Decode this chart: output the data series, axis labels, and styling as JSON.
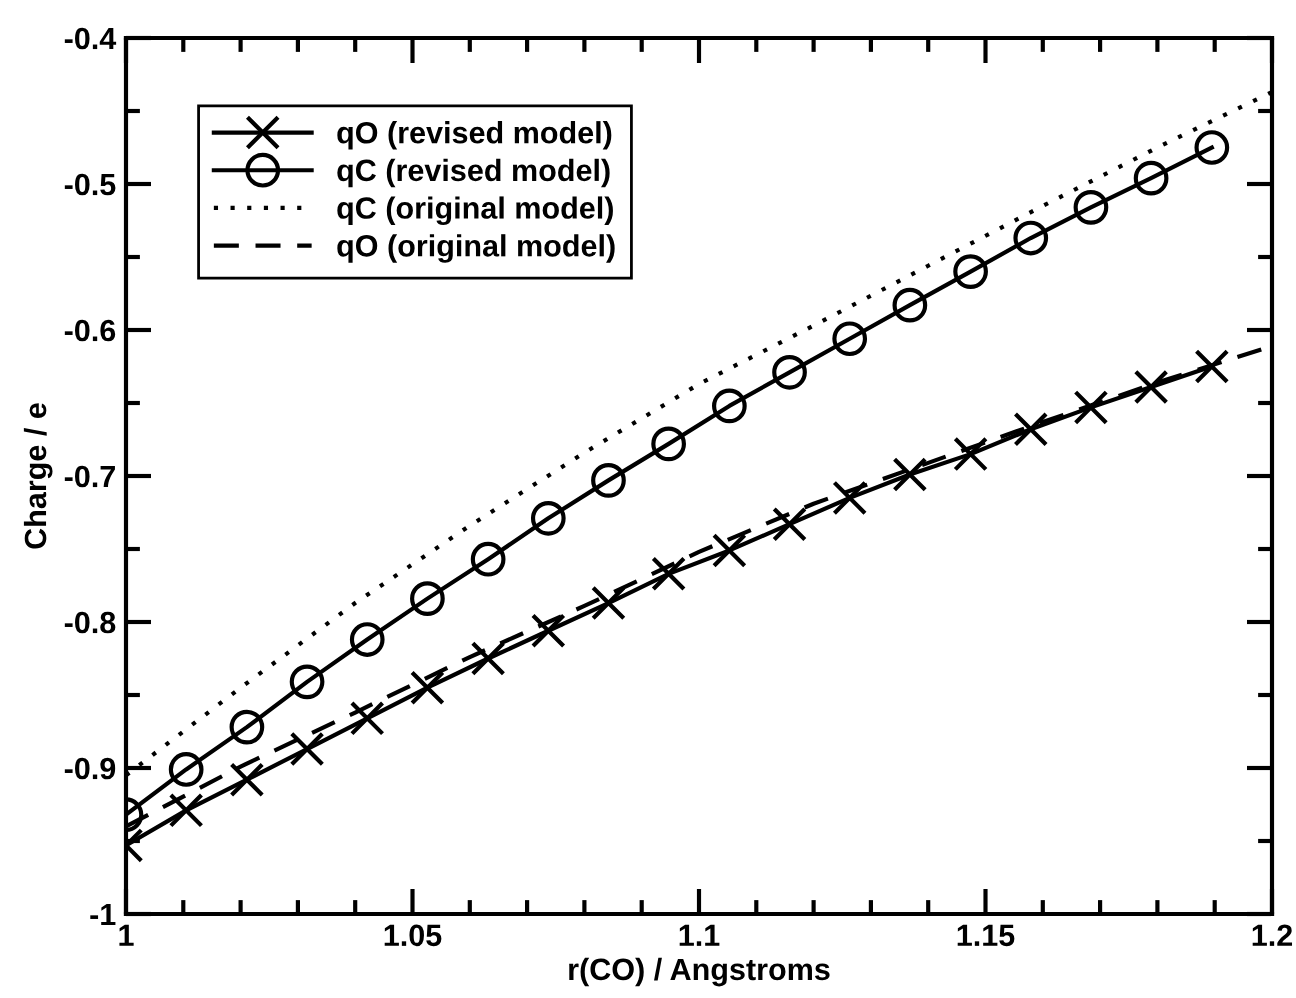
{
  "chart_data": {
    "type": "line",
    "xlabel": "r(CO) / Angstroms",
    "ylabel": "Charge / e",
    "xlim": [
      1,
      1.2
    ],
    "xticks": [
      1,
      1.05,
      1.1,
      1.15,
      1.2
    ],
    "ylim": [
      -1,
      -0.4
    ],
    "yticks": [
      -1,
      -0.9,
      -0.8,
      -0.7,
      -0.6,
      -0.5,
      -0.4
    ],
    "grid": false,
    "legend": "top left",
    "series": [
      {
        "name": "qO (revised model)",
        "color": "#000000",
        "marker": "cross",
        "line_style": "solid",
        "x": [
          1,
          1.0105,
          1.0211,
          1.0316,
          1.0421,
          1.0526,
          1.0632,
          1.0737,
          1.0842,
          1.0947,
          1.1053,
          1.1158,
          1.1263,
          1.1368,
          1.1474,
          1.1579,
          1.1684,
          1.1789,
          1.1895
        ],
        "values": [
          -0.953,
          -0.929,
          -0.908,
          -0.887,
          -0.866,
          -0.845,
          -0.825,
          -0.806,
          -0.787,
          -0.767,
          -0.751,
          -0.733,
          -0.715,
          -0.699,
          -0.685,
          -0.668,
          -0.653,
          -0.639,
          -0.625
        ]
      },
      {
        "name": "qC (revised model)",
        "color": "#000000",
        "marker": "circle",
        "line_style": "solid",
        "x": [
          1,
          1.0105,
          1.0211,
          1.0316,
          1.0421,
          1.0526,
          1.0632,
          1.0737,
          1.0842,
          1.0947,
          1.1053,
          1.1158,
          1.1263,
          1.1368,
          1.1474,
          1.1579,
          1.1684,
          1.1789,
          1.1895
        ],
        "values": [
          -0.932,
          -0.901,
          -0.872,
          -0.841,
          -0.812,
          -0.784,
          -0.757,
          -0.729,
          -0.703,
          -0.678,
          -0.652,
          -0.629,
          -0.606,
          -0.583,
          -0.56,
          -0.537,
          -0.516,
          -0.496,
          -0.475
        ]
      },
      {
        "name": "qC (original model)",
        "color": "#000000",
        "marker": "none",
        "line_style": "dotted",
        "x": [
          1,
          1.02,
          1.04,
          1.06,
          1.08,
          1.1,
          1.12,
          1.14,
          1.16,
          1.18,
          1.2
        ],
        "values": [
          -0.905,
          -0.845,
          -0.787,
          -0.734,
          -0.684,
          -0.637,
          -0.597,
          -0.556,
          -0.515,
          -0.475,
          -0.437
        ]
      },
      {
        "name": "qO (original model)",
        "color": "#000000",
        "marker": "none",
        "line_style": "dashed",
        "x": [
          1,
          1.02,
          1.04,
          1.06,
          1.08,
          1.1,
          1.12,
          1.14,
          1.16,
          1.18,
          1.2
        ],
        "values": [
          -0.94,
          -0.899,
          -0.862,
          -0.824,
          -0.789,
          -0.752,
          -0.719,
          -0.691,
          -0.663,
          -0.636,
          -0.611
        ]
      }
    ]
  }
}
